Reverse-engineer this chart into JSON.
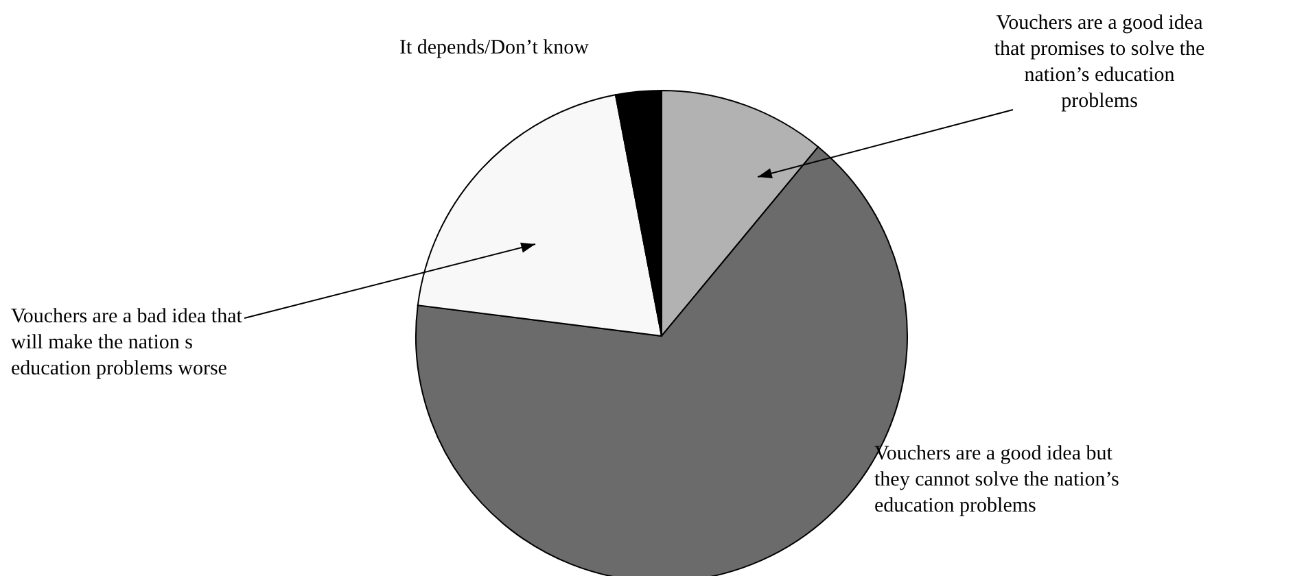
{
  "chart_data": {
    "type": "pie",
    "categories": [
      "Vouchers are a good idea that promises to solve the nation’s education problems",
      "Vouchers are a good idea but they cannot solve the nation’s education problems",
      "Vouchers are a bad idea that will make the nation s education problems worse",
      "It depends/Don’t know"
    ],
    "values": [
      11,
      66,
      20,
      3
    ],
    "colors": [
      "#b2b2b2",
      "#6b6b6b",
      "#f8f8f8",
      "#000000"
    ]
  }
}
